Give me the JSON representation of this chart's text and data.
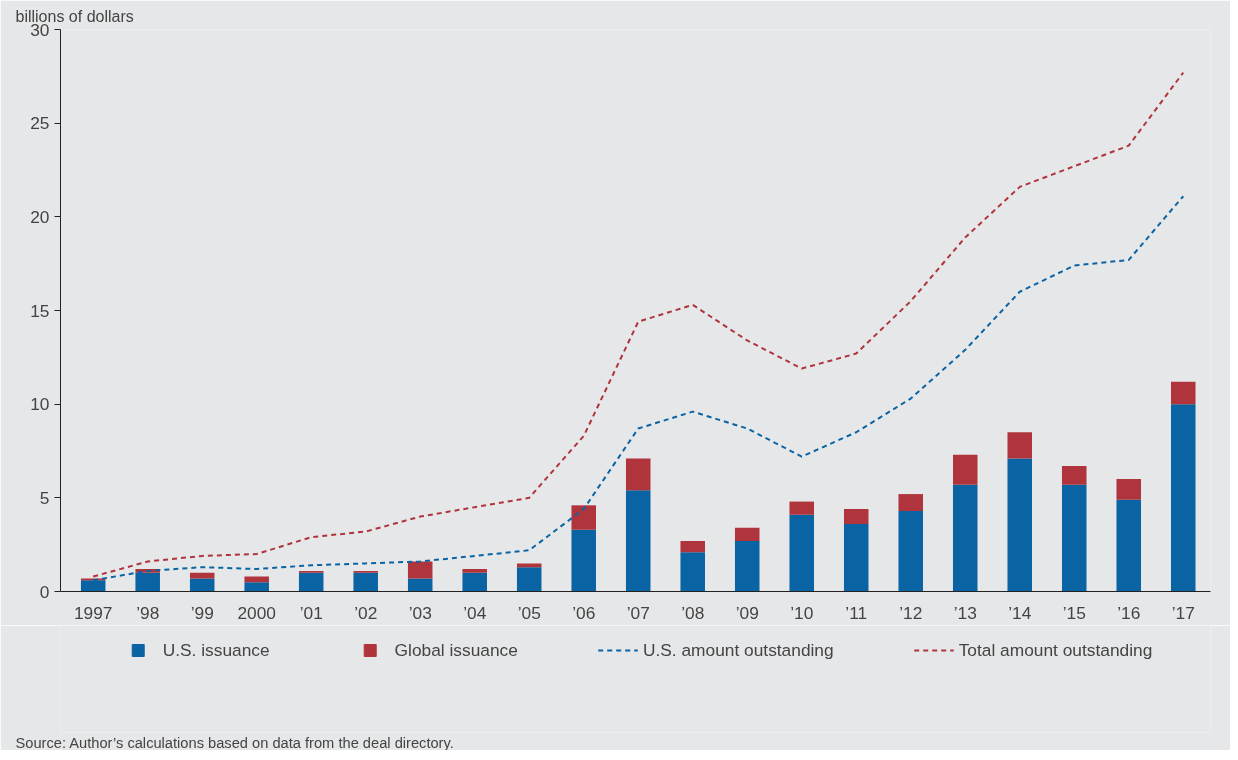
{
  "chart_data": {
    "type": "bar",
    "stacked": true,
    "ylabel": "billions of dollars",
    "categories": [
      "1997",
      "’98",
      "’99",
      "2000",
      "’01",
      "’02",
      "’03",
      "’04",
      "’05",
      "’06",
      "’07",
      "’08",
      "’09",
      "’10",
      "’11",
      "’12",
      "’13",
      "’14",
      "’15",
      "’16",
      "’17"
    ],
    "series": [
      {
        "name": "U.S. issuance",
        "color": "#0a64a4",
        "values": [
          0.6,
          1.0,
          0.7,
          0.5,
          1.0,
          1.0,
          0.7,
          1.0,
          1.3,
          3.3,
          5.4,
          2.1,
          2.7,
          4.1,
          3.6,
          4.3,
          5.7,
          7.1,
          5.7,
          4.9,
          10.0
        ]
      },
      {
        "name": "Global issuance",
        "color": "#b0343b",
        "values": [
          0.1,
          0.2,
          0.3,
          0.3,
          0.1,
          0.1,
          0.9,
          0.2,
          0.2,
          1.3,
          1.7,
          0.6,
          0.7,
          0.7,
          0.8,
          0.9,
          1.6,
          1.4,
          1.0,
          1.1,
          1.2
        ]
      },
      {
        "name": "U.S. amount outstanding",
        "type": "line",
        "line_style": "dashed",
        "color": "#0a64a4",
        "values": [
          0.6,
          1.1,
          1.3,
          1.2,
          1.4,
          1.5,
          1.6,
          1.9,
          2.2,
          4.4,
          8.7,
          9.6,
          8.7,
          7.2,
          8.5,
          10.3,
          12.9,
          16.0,
          17.4,
          17.7,
          21.1
        ]
      },
      {
        "name": "Total amount outstanding",
        "type": "line",
        "line_style": "dashed",
        "color": "#b0343b",
        "values": [
          0.8,
          1.6,
          1.9,
          2.0,
          2.9,
          3.2,
          4.0,
          4.5,
          5.0,
          8.3,
          14.4,
          15.3,
          13.4,
          11.9,
          12.7,
          15.5,
          18.9,
          21.6,
          22.7,
          23.8,
          27.7
        ]
      }
    ],
    "ylim": [
      0,
      30
    ],
    "yticks": [
      0,
      5,
      10,
      15,
      20,
      25,
      30
    ],
    "grid": false,
    "legend": "bottom",
    "annotations": [
      "Source: Author’s calculations based on data from the deal directory."
    ]
  }
}
